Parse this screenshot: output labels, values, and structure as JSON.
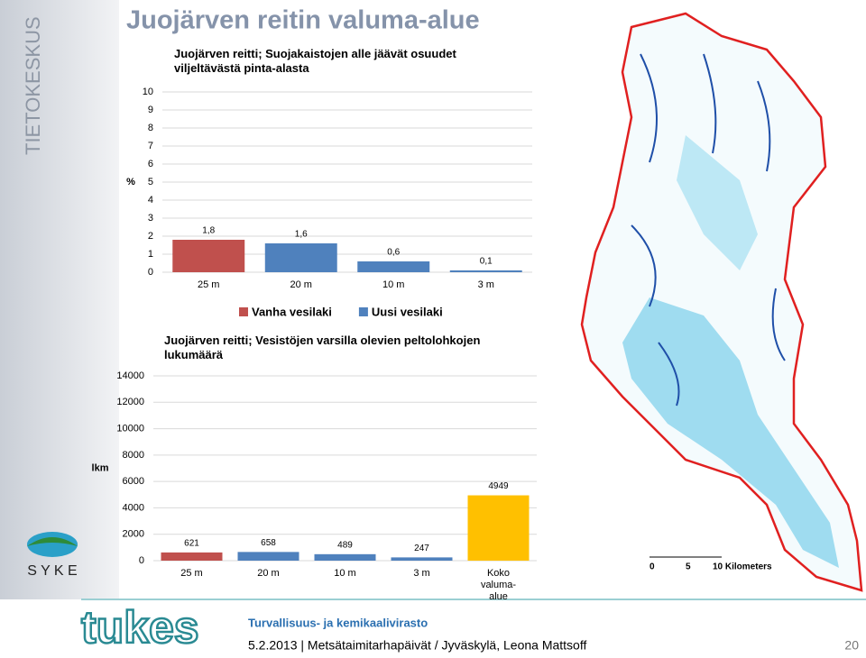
{
  "slide": {
    "title": "Juojärven reitin valuma-alue",
    "sidebar": "TIETOKESKUS",
    "logo": "S Y K E",
    "brand": "tukes",
    "agency": "Turvallisuus- ja kemikaalivirasto",
    "footer": "5.2.2013 | Metsätaimitarhapäivät / Jyväskylä, Leona Mattsoff",
    "page": "20"
  },
  "map": {
    "scale_labels": [
      "0",
      "5",
      "10 Kilometers"
    ]
  },
  "chart_data": [
    {
      "type": "bar",
      "title": "Juojärven reitti; Suojakaistojen alle jäävät osuudet viljeltävästä pinta-alasta",
      "y_label": "%",
      "categories": [
        "25 m",
        "20 m",
        "10 m",
        "3 m"
      ],
      "series": [
        {
          "name": "Vanha vesilaki",
          "color": "#c0504d",
          "values": [
            1.8,
            null,
            null,
            null
          ],
          "value_labels": [
            "1,8",
            null,
            null,
            null
          ]
        },
        {
          "name": "Uusi vesilaki",
          "color": "#4f81bd",
          "values": [
            null,
            1.6,
            0.6,
            0.1
          ],
          "value_labels": [
            null,
            "1,6",
            "0,6",
            "0,1"
          ]
        }
      ],
      "ylim": [
        0,
        10
      ],
      "yticks": [
        0,
        1,
        2,
        3,
        4,
        5,
        6,
        7,
        8,
        9,
        10
      ],
      "legend": "bottom"
    },
    {
      "type": "bar",
      "title": "Juojärven reitti; Vesistöjen varsilla olevien peltolohkojen lukumäärä",
      "y_label": "lkm",
      "categories": [
        "25 m",
        "20 m",
        "10 m",
        "3 m",
        "Koko valuma-alue"
      ],
      "values": [
        621,
        658,
        489,
        247,
        4949
      ],
      "colors": [
        "#c0504d",
        "#4f81bd",
        "#4f81bd",
        "#4f81bd",
        "#ffc000"
      ],
      "ylim": [
        0,
        14000
      ],
      "yticks": [
        0,
        2000,
        4000,
        6000,
        8000,
        10000,
        12000,
        14000
      ]
    }
  ]
}
